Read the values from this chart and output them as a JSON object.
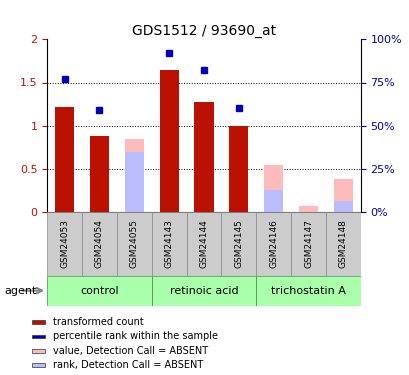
{
  "title": "GDS1512 / 93690_at",
  "samples": [
    "GSM24053",
    "GSM24054",
    "GSM24055",
    "GSM24143",
    "GSM24144",
    "GSM24145",
    "GSM24146",
    "GSM24147",
    "GSM24148"
  ],
  "transformed_count": [
    1.22,
    0.88,
    null,
    1.65,
    1.27,
    1.0,
    null,
    null,
    null
  ],
  "percentile_rank": [
    0.77,
    0.59,
    null,
    0.92,
    0.82,
    0.6,
    null,
    null,
    null
  ],
  "absent_value": [
    null,
    null,
    0.84,
    null,
    null,
    null,
    0.54,
    0.07,
    0.38
  ],
  "absent_rank": [
    null,
    null,
    0.7,
    null,
    null,
    null,
    0.25,
    null,
    0.13
  ],
  "bar_width": 0.55,
  "ylim_left": [
    0,
    2
  ],
  "ylim_right": [
    0,
    100
  ],
  "yticks_left": [
    0,
    0.5,
    1.0,
    1.5,
    2.0
  ],
  "ytick_labels_left": [
    "0",
    "0.5",
    "1",
    "1.5",
    "2"
  ],
  "yticks_right": [
    0,
    25,
    50,
    75,
    100
  ],
  "ytick_labels_right": [
    "0%",
    "25%",
    "50%",
    "75%",
    "100%"
  ],
  "hgrid_values": [
    0.5,
    1.0,
    1.5
  ],
  "color_red": "#bb1100",
  "color_blue": "#0000bb",
  "color_pink": "#ffbbbb",
  "color_lightblue": "#bbbbff",
  "color_sample_box": "#cccccc",
  "color_group_box": "#aaffaa",
  "group_defs": [
    {
      "label": "control",
      "start": 0,
      "end": 2
    },
    {
      "label": "retinoic acid",
      "start": 3,
      "end": 5
    },
    {
      "label": "trichostatin A",
      "start": 6,
      "end": 8
    }
  ],
  "legend_items": [
    {
      "label": "transformed count",
      "color": "#bb1100"
    },
    {
      "label": "percentile rank within the sample",
      "color": "#0000bb"
    },
    {
      "label": "value, Detection Call = ABSENT",
      "color": "#ffbbbb"
    },
    {
      "label": "rank, Detection Call = ABSENT",
      "color": "#bbbbff"
    }
  ],
  "agent_label": "agent"
}
